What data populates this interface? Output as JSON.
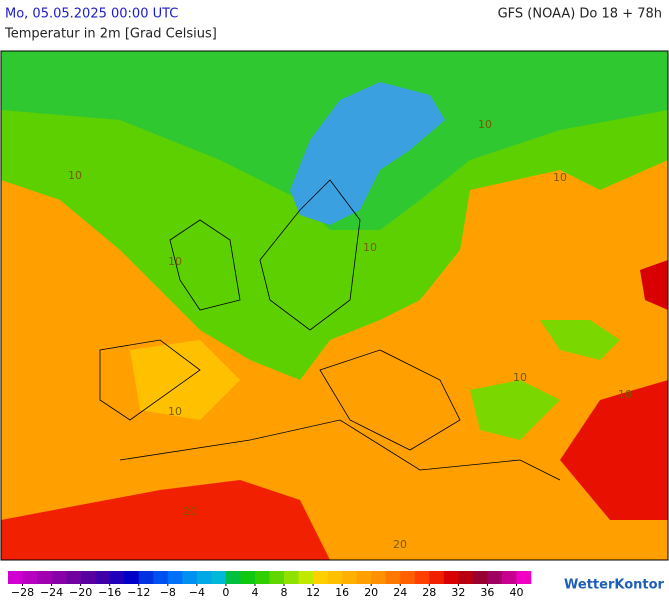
{
  "header": {
    "date": "Mo, 05.05.2025 00:00 UTC",
    "model": "GFS (NOAA) Do 18 + 78h",
    "subtitle": "Temperatur in 2m [Grad Celsius]"
  },
  "map": {
    "contour_labels": [
      "10",
      "10",
      "10",
      "10",
      "10",
      "10",
      "10",
      "10",
      "20",
      "20"
    ]
  },
  "colorbar": {
    "lim": [
      -30,
      42
    ],
    "ticks": [
      {
        "value": -28,
        "label": "−28"
      },
      {
        "value": -24,
        "label": "−24"
      },
      {
        "value": -20,
        "label": "−20"
      },
      {
        "value": -16,
        "label": "−16"
      },
      {
        "value": -12,
        "label": "−12"
      },
      {
        "value": -8,
        "label": "−8"
      },
      {
        "value": -4,
        "label": "−4"
      },
      0,
      4,
      8,
      12,
      16,
      20,
      24,
      28,
      32,
      36,
      40
    ],
    "colors": [
      "#d000d0",
      "#b800c0",
      "#a000b0",
      "#8800a8",
      "#7000a0",
      "#5800a0",
      "#4000a8",
      "#2000b8",
      "#0000c8",
      "#0030e0",
      "#0050f0",
      "#0070f8",
      "#0090f0",
      "#00a8e8",
      "#00b8d8",
      "#00c040",
      "#10c810",
      "#30d000",
      "#60d800",
      "#90e000",
      "#c0e800",
      "#ffd000",
      "#ffc000",
      "#ffb000",
      "#ffa000",
      "#ff9000",
      "#ff7800",
      "#ff6000",
      "#ff4000",
      "#f02000",
      "#d80000",
      "#b80010",
      "#980030",
      "#a00060",
      "#c80090",
      "#f000c0"
    ]
  },
  "brand": "WetterKontor"
}
